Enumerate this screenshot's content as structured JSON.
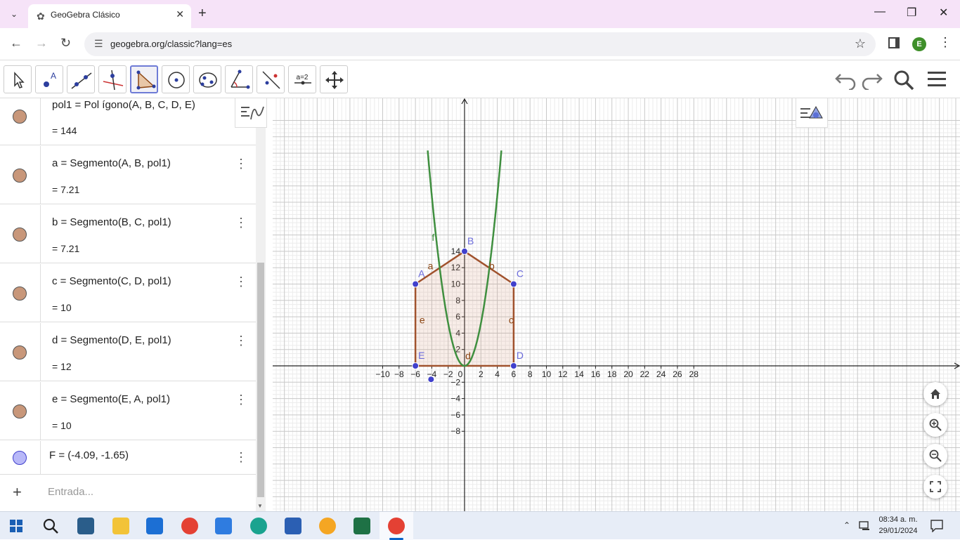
{
  "browser": {
    "tab_title": "GeoGebra Clásico",
    "url": "geogebra.org/classic?lang=es",
    "profile_initial": "E"
  },
  "toolbar": {
    "tools": [
      "move",
      "point",
      "line",
      "perpendicular-line",
      "polygon",
      "circle",
      "conic",
      "angle",
      "reflect",
      "slider",
      "move-graphics"
    ],
    "slider_label": "a=2",
    "active_tool": "polygon"
  },
  "algebra": {
    "rows": [
      {
        "def": "pol1  =  Pol ígono(A, B, C, D, E)",
        "value": "=  144",
        "color": "#c8977a"
      },
      {
        "def": "a  =  Segmento(A, B, pol1)",
        "value": "=  7.21",
        "color": "#c8977a"
      },
      {
        "def": "b  =  Segmento(B, C, pol1)",
        "value": "=  7.21",
        "color": "#c8977a"
      },
      {
        "def": "c  =  Segmento(C, D, pol1)",
        "value": "=  10",
        "color": "#c8977a"
      },
      {
        "def": "d  =  Segmento(D, E, pol1)",
        "value": "=  12",
        "color": "#c8977a"
      },
      {
        "def": "e  =  Segmento(E, A, pol1)",
        "value": "=  10",
        "color": "#c8977a"
      },
      {
        "def": "F = (-4.09, -1.65)",
        "value": "",
        "color": "#b8b8f8"
      }
    ],
    "input_placeholder": "Entrada..."
  },
  "graphics": {
    "x_ticks": [
      "−10",
      "−8",
      "−6",
      "−4",
      "−2",
      "0",
      "2",
      "4",
      "6",
      "8",
      "10",
      "12",
      "14",
      "16",
      "18",
      "20",
      "22",
      "24",
      "26",
      "28"
    ],
    "y_ticks": [
      "14",
      "12",
      "10",
      "8",
      "6",
      "4",
      "2",
      "−2",
      "−4",
      "−6",
      "−8"
    ],
    "point_labels": [
      "A",
      "B",
      "C",
      "D",
      "E"
    ],
    "segment_labels": [
      "a",
      "b",
      "c",
      "d",
      "e"
    ],
    "function_label": "f",
    "polygon_color": "#a0522d",
    "function_color": "#3f8f3f",
    "point_color": "#4040cc"
  },
  "taskbar": {
    "time": "08:34 a. m.",
    "date": "29/01/2024"
  }
}
